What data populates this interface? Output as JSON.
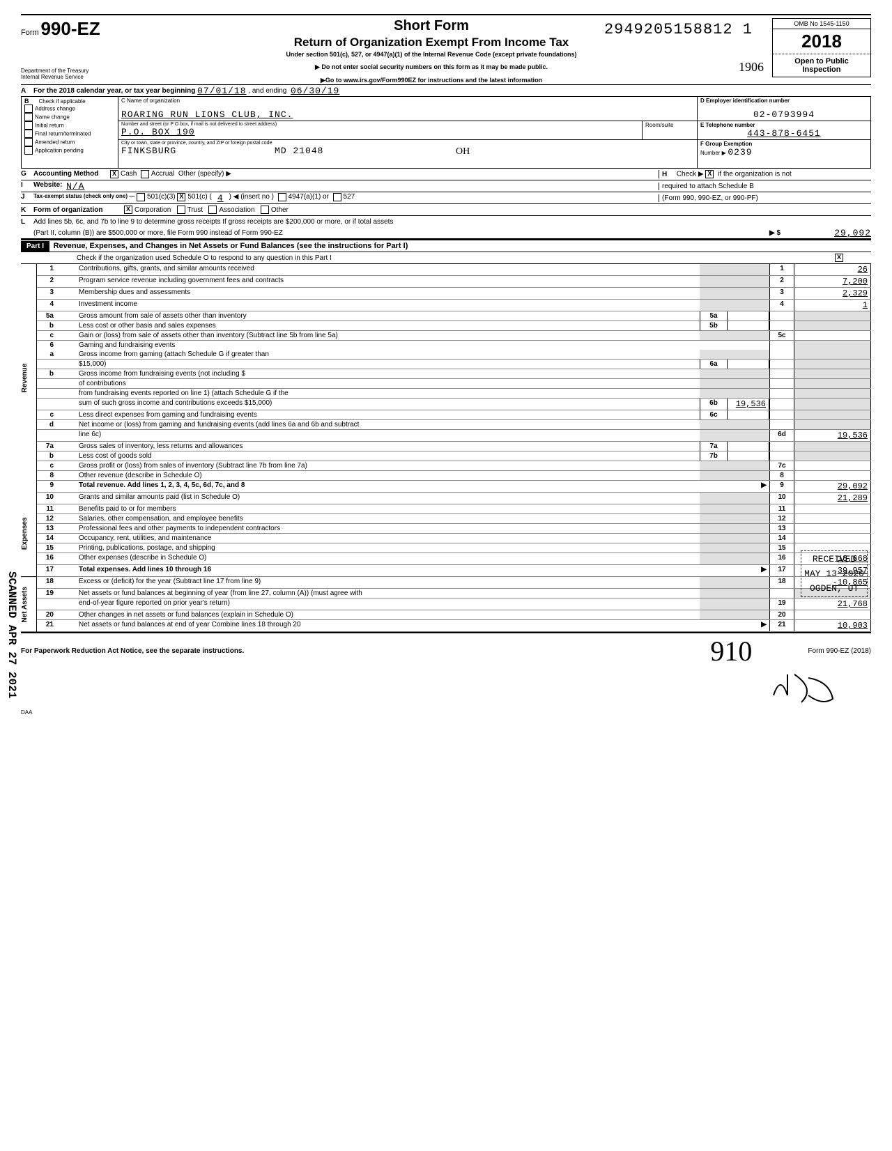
{
  "stamp_top_number": "2949205158812 1",
  "form": {
    "prefix": "Form",
    "number": "990-EZ",
    "short_form": "Short Form",
    "title": "Return of Organization Exempt From Income Tax",
    "subtitle": "Under section 501(c), 527, or 4947(a)(1) of the Internal Revenue Code (except private foundations)",
    "warn1": "▶ Do not enter social security numbers on this form as it may be made public.",
    "warn2": "▶Go to www.irs.gov/Form990EZ for instructions and the latest information",
    "dept1": "Department of the Treasury",
    "dept2": "Internal Revenue Service"
  },
  "right": {
    "omb": "OMB No 1545-1150",
    "year": "2018",
    "open1": "Open to Public",
    "open2": "Inspection"
  },
  "hw_1906": "1906",
  "lineA": {
    "label": "For the 2018 calendar year, or tax year beginning",
    "begin": "07/01/18",
    "mid": ", and ending",
    "end": "06/30/19"
  },
  "B": {
    "label": "Check if applicable",
    "opts": [
      "Address change",
      "Name change",
      "Initial return",
      "Final return/terminated",
      "Amended return",
      "Application pending"
    ]
  },
  "C": {
    "label": "C  Name of organization",
    "name": "ROARING RUN LIONS CLUB, INC.",
    "addr_label": "Number and street (or P O box, if mail is not delivered to street address)",
    "room_label": "Room/suite",
    "addr": "P.O. BOX 190",
    "city_label": "City or town, state or province, country, and ZIP or foreign postal code",
    "city": "FINKSBURG                MD 21048"
  },
  "D": {
    "label": "D  Employer identification number",
    "value": "02-0793994"
  },
  "E": {
    "label": "E  Telephone number",
    "value": "443-878-6451"
  },
  "F": {
    "label": "F  Group Exemption",
    "num_label": "Number  ▶",
    "value": "0239"
  },
  "G": {
    "label": "Accounting Method",
    "cash": "Cash",
    "accrual": "Accrual",
    "other": "Other (specify) ▶"
  },
  "H": {
    "label": "Check ▶",
    "text1": "if the organization is not",
    "text2": "required to attach Schedule B",
    "text3": "(Form 990, 990-EZ, or 990-PF)"
  },
  "I": {
    "label": "Website:",
    "value": "N/A"
  },
  "J": {
    "label": "Tax-exempt status (check only one) —",
    "c3": "501(c)(3)",
    "c": "501(c) (",
    "insert": "4",
    "paren": ") ◀ (insert no )",
    "a1": "4947(a)(1) or",
    "s527": "527"
  },
  "K": {
    "label": "Form of organization",
    "corp": "Corporation",
    "trust": "Trust",
    "assoc": "Association",
    "other": "Other"
  },
  "L": {
    "text1": "Add lines 5b, 6c, and 7b to line 9 to determine gross receipts  If gross receipts are $200,000 or more, or if total assets",
    "text2": "(Part II, column (B)) are $500,000 or more, file Form 990 instead of Form 990-EZ",
    "arrow": "▶ $",
    "value": "29,092"
  },
  "part1": {
    "header": "Part I",
    "title": "Revenue, Expenses, and Changes in Net Assets or Fund Balances (see the instructions for Part I)",
    "check_line": "Check if the organization used Schedule O to respond to any question in this Part I"
  },
  "vert_labels": {
    "revenue": "Revenue",
    "expenses": "Expenses",
    "netassets": "Net Assets"
  },
  "lines": {
    "1": {
      "t": "Contributions, gifts, grants, and similar amounts received",
      "v": "26"
    },
    "2": {
      "t": "Program service revenue including government fees and contracts",
      "v": "7,200"
    },
    "3": {
      "t": "Membership dues and assessments",
      "v": "2,329"
    },
    "4": {
      "t": "Investment income",
      "v": "1"
    },
    "5a": {
      "t": "Gross amount from sale of assets other than inventory"
    },
    "5b": {
      "t": "Less  cost or other basis and sales expenses"
    },
    "5c": {
      "t": "Gain or (loss) from sale of assets other than inventory (Subtract line 5b from line 5a)",
      "v": ""
    },
    "6": {
      "t": "Gaming and fundraising events"
    },
    "6a": {
      "t": "Gross income from gaming (attach Schedule G if greater than",
      "t2": "$15,000)"
    },
    "6b": {
      "t": "Gross income from fundraising events (not including $",
      "t2": "of contributions",
      "t3": "from fundraising events reported on line 1) (attach Schedule G if the",
      "t4": "sum of such gross income and contributions exceeds $15,000)",
      "mv": "19,536"
    },
    "6c": {
      "t": "Less  direct expenses from gaming and fundraising events"
    },
    "6d": {
      "t": "Net income or (loss) from gaming and fundraising events (add lines 6a and 6b and subtract",
      "t2": "line 6c)",
      "v": "19,536"
    },
    "7a": {
      "t": "Gross sales of inventory, less returns and allowances"
    },
    "7b": {
      "t": "Less  cost of goods sold"
    },
    "7c": {
      "t": "Gross profit or (loss) from sales of inventory (Subtract line 7b from line 7a)",
      "v": ""
    },
    "8": {
      "t": "Other revenue (describe in Schedule O)",
      "v": ""
    },
    "9": {
      "t": "Total revenue. Add lines 1, 2, 3, 4, 5c, 6d, 7c, and 8",
      "v": "29,092",
      "bold": true,
      "arrow": true
    },
    "10": {
      "t": "Grants and similar amounts paid (list in Schedule O)",
      "v": "21,289"
    },
    "11": {
      "t": "Benefits paid to or for members",
      "v": ""
    },
    "12": {
      "t": "Salaries, other compensation, and employee benefits",
      "v": ""
    },
    "13": {
      "t": "Professional fees and other payments to independent contractors",
      "v": ""
    },
    "14": {
      "t": "Occupancy, rent, utilities, and maintenance",
      "v": ""
    },
    "15": {
      "t": "Printing, publications, postage, and shipping",
      "v": ""
    },
    "16": {
      "t": "Other expenses (describe in Schedule O)",
      "v": "18,668"
    },
    "17": {
      "t": "Total expenses. Add lines 10 through 16",
      "v": "39,957",
      "bold": true,
      "arrow": true
    },
    "18": {
      "t": "Excess or (deficit) for the year (Subtract line 17 from line 9)",
      "v": "-10,865"
    },
    "19": {
      "t": "Net assets or fund balances at beginning of year (from line 27, column (A)) (must agree with",
      "t2": "end-of-year figure reported on prior year's return)",
      "v": "21,768"
    },
    "20": {
      "t": "Other changes in net assets or fund balances (explain in Schedule O)",
      "v": ""
    },
    "21": {
      "t": "Net assets or fund balances at end of year  Combine lines 18 through 20",
      "v": "10,903",
      "arrow": true
    }
  },
  "footer": {
    "paperwork": "For Paperwork Reduction Act Notice, see the separate instructions.",
    "form_ref": "Form 990-EZ (2018)",
    "daa": "DAA",
    "hw_910": "910"
  },
  "stamps": {
    "scanned": "SCANNED APR 27 2021",
    "received": "RECEIVED",
    "received_date": "MAY 13 2020",
    "received_loc": "OGDEN, UT"
  },
  "initial_OH": "OH"
}
